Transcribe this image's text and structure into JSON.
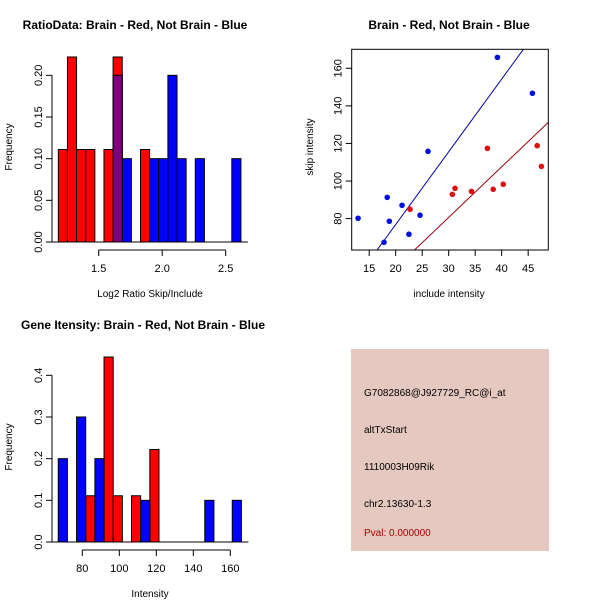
{
  "colors": {
    "red": "#ff0000",
    "blue": "#0000ff",
    "overlap": "#800080",
    "pt_red": "#dd1111",
    "pt_blue": "#0011dd",
    "line_blue": "#000099",
    "line_red": "#990011",
    "info_bg": "#e5c8c0",
    "pval": "#aa0000"
  },
  "chart_data": [
    {
      "type": "bar",
      "title": "RatioData: Brain - Red, Not Brain - Blue",
      "xlabel": "Log2 Ratio Skip/Include",
      "ylabel": "Frequency",
      "bin_start": 1.182,
      "bin_width": 0.0719,
      "xticks": [
        "1.5",
        "2.0",
        "2.5"
      ],
      "xtick_values": [
        1.5,
        2.0,
        2.5
      ],
      "yticks": [
        "0.00",
        "0.05",
        "0.10",
        "0.15",
        "0.20"
      ],
      "ytick_values": [
        0,
        0.05,
        0.1,
        0.15,
        0.2
      ],
      "series": [
        {
          "name": "Brain",
          "color": "red",
          "bins": [
            0,
            1,
            2,
            3,
            5,
            6,
            9
          ],
          "values": [
            0.111,
            0.222,
            0.111,
            0.111,
            0.111,
            0.222,
            0.111
          ]
        },
        {
          "name": "Not Brain",
          "color": "blue",
          "bins": [
            6,
            7,
            10,
            11,
            12,
            13,
            15,
            19
          ],
          "values": [
            0.2,
            0.1,
            0.1,
            0.1,
            0.2,
            0.1,
            0.1,
            0.1
          ]
        }
      ]
    },
    {
      "type": "scatter",
      "title": "Brain - Red, Not Brain - Blue",
      "xlabel": "include intensity",
      "ylabel": "skip intensity",
      "xlim": [
        11.7,
        48.8
      ],
      "ylim": [
        63.3,
        170.1
      ],
      "xticks": [
        "15",
        "20",
        "25",
        "30",
        "35",
        "40",
        "45"
      ],
      "xtick_values": [
        15,
        20,
        25,
        30,
        35,
        40,
        45
      ],
      "yticks": [
        "80",
        "100",
        "120",
        "140",
        "160"
      ],
      "ytick_values": [
        80,
        100,
        120,
        140,
        160
      ],
      "series": [
        {
          "name": "Not Brain",
          "color": "pt_blue",
          "x": [
            12.9,
            17.8,
            18.4,
            18.8,
            21.2,
            22.5,
            24.6,
            26.1,
            39.2,
            45.8
          ],
          "y": [
            80.2,
            67.4,
            91.3,
            78.6,
            87.1,
            71.7,
            81.8,
            115.8,
            165.8,
            146.7
          ],
          "fit": {
            "slope": 3.87,
            "intercept": -0.56,
            "color": "line_blue"
          }
        },
        {
          "name": "Brain",
          "color": "pt_red",
          "x": [
            22.7,
            30.7,
            31.2,
            34.3,
            37.3,
            38.4,
            40.3,
            46.7,
            47.5
          ],
          "y": [
            85.0,
            92.9,
            96.1,
            94.5,
            117.4,
            95.6,
            98.3,
            118.8,
            107.8
          ],
          "fit": {
            "slope": 2.69,
            "intercept": -0.06,
            "color": "line_red"
          }
        }
      ]
    },
    {
      "type": "bar",
      "title": "Gene Itensity: Brain - Red, Not Brain - Blue",
      "xlabel": "Intensity",
      "ylabel": "Frequency",
      "bin_start": 67,
      "bin_width": 4.95,
      "xticks": [
        "80",
        "100",
        "120",
        "140",
        "160"
      ],
      "xtick_values": [
        80,
        100,
        120,
        140,
        160
      ],
      "yticks": [
        "0.0",
        "0.1",
        "0.2",
        "0.3",
        "0.4"
      ],
      "ytick_values": [
        0,
        0.1,
        0.2,
        0.3,
        0.4
      ],
      "series": [
        {
          "name": "Brain",
          "color": "red",
          "bins": [
            3,
            5,
            6,
            8,
            10
          ],
          "values": [
            0.111,
            0.444,
            0.111,
            0.111,
            0.222
          ]
        },
        {
          "name": "Not Brain",
          "color": "blue",
          "bins": [
            0,
            2,
            4,
            9,
            16,
            19
          ],
          "values": [
            0.2,
            0.3,
            0.2,
            0.1,
            0.1,
            0.1
          ]
        }
      ]
    }
  ],
  "info": {
    "probe": "G7082868@J927729_RC@i_at",
    "event": "altTxStart",
    "gene": "1110003H09Rik",
    "location": "chr2.13630-1.3",
    "pval": "Pval: 0.000000"
  }
}
